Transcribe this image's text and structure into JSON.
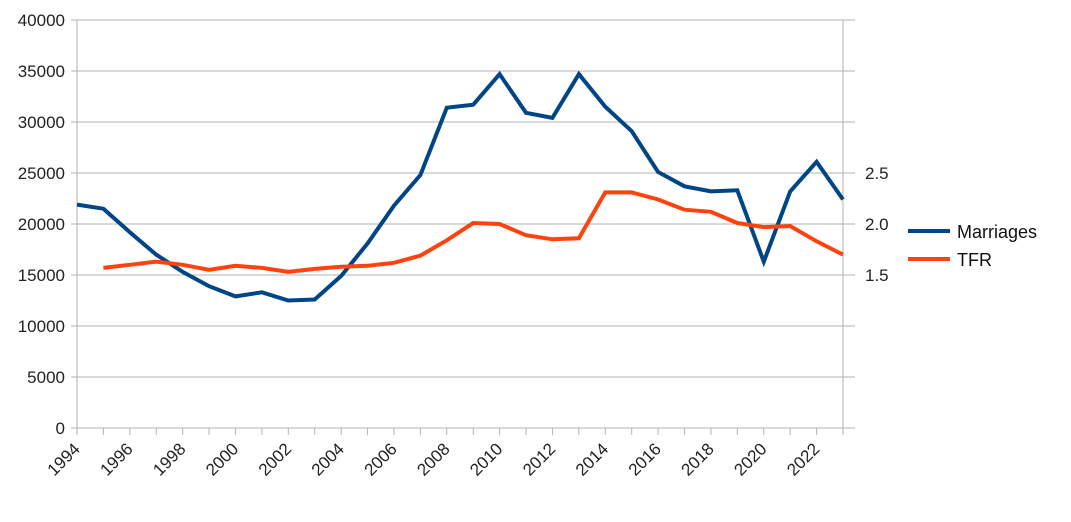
{
  "chart_data": {
    "type": "line",
    "x": [
      1994,
      1995,
      1996,
      1997,
      1998,
      1999,
      2000,
      2001,
      2002,
      2003,
      2004,
      2005,
      2006,
      2007,
      2008,
      2009,
      2010,
      2011,
      2012,
      2013,
      2014,
      2015,
      2016,
      2017,
      2018,
      2019,
      2020,
      2021,
      2022,
      2023
    ],
    "x_tick_labels": [
      "1994",
      "1996",
      "1998",
      "2000",
      "2002",
      "2004",
      "2006",
      "2008",
      "2010",
      "2012",
      "2014",
      "2016",
      "2018",
      "2020",
      "2022"
    ],
    "y_left": {
      "ylim": [
        0,
        40000
      ],
      "ticks": [
        0,
        5000,
        10000,
        15000,
        20000,
        25000,
        30000,
        35000,
        40000
      ]
    },
    "y_right": {
      "ylim": [
        0,
        4
      ],
      "ticks": [
        1.5,
        2.0,
        2.5
      ],
      "tick_labels": [
        "1.5",
        "2.0",
        "2.5"
      ]
    },
    "grid": true,
    "legend": "right",
    "series": [
      {
        "name": "Marriages",
        "axis": "left",
        "color": "#004586",
        "values": [
          21900,
          21500,
          19200,
          17000,
          15300,
          13900,
          12900,
          13300,
          12500,
          12600,
          14900,
          18100,
          21800,
          24800,
          31400,
          31700,
          34700,
          30900,
          30400,
          34700,
          31500,
          29100,
          25100,
          23700,
          23200,
          23300,
          16300,
          23200,
          26100,
          22400
        ]
      },
      {
        "name": "TFR",
        "axis": "right",
        "color": "#ff420e",
        "values": [
          null,
          1.57,
          1.6,
          1.63,
          1.6,
          1.55,
          1.59,
          1.57,
          1.53,
          1.56,
          1.58,
          1.59,
          1.62,
          1.69,
          1.84,
          2.01,
          2.0,
          1.89,
          1.85,
          1.86,
          2.31,
          2.31,
          2.24,
          2.14,
          2.12,
          2.01,
          1.97,
          1.98,
          1.83,
          1.7
        ]
      }
    ]
  }
}
